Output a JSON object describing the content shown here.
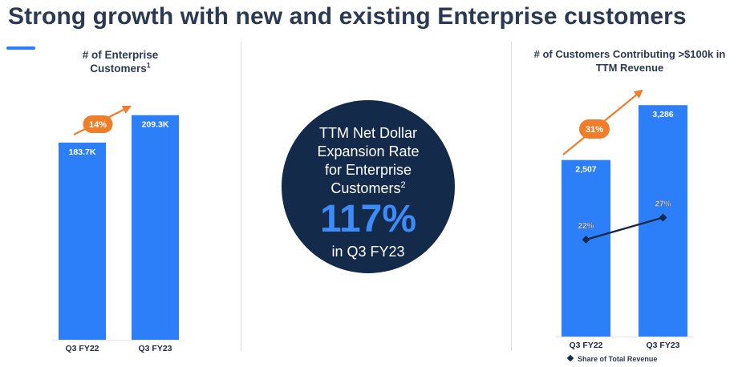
{
  "page_title": "Strong growth with new and existing Enterprise customers",
  "circle": {
    "label_lines": [
      "TTM Net Dollar",
      "Expansion Rate",
      "for Enterprise",
      "Customers"
    ],
    "label_sup": "2",
    "value": "117%",
    "sub": "in Q3 FY23"
  },
  "colors": {
    "bar": "#2d7ff9",
    "growth_arrow": "#f07d2a",
    "line": "#132a4a",
    "circle": "#132a4a"
  },
  "chart_data": [
    {
      "type": "bar",
      "title": "# of Enterprise Customers",
      "title_lines": [
        "# of Enterprise",
        "Customers"
      ],
      "title_sup": "1",
      "categories": [
        "Q3 FY22",
        "Q3 FY23"
      ],
      "values": [
        183.7,
        209.3
      ],
      "value_labels": [
        "183.7K",
        "209.3K"
      ],
      "unit": "K",
      "growth_label": "14%",
      "ylim": [
        0,
        230
      ]
    },
    {
      "type": "bar",
      "title": "# of Customers Contributing >$100k in TTM Revenue",
      "title_lines": [
        "# of Customers Contributing >$100k in",
        "TTM Revenue"
      ],
      "categories": [
        "Q3 FY22",
        "Q3 FY23"
      ],
      "values": [
        2507,
        3286
      ],
      "value_labels": [
        "2,507",
        "3,286"
      ],
      "growth_label": "31%",
      "ylim": [
        0,
        3550
      ],
      "line_series": {
        "name": "Share of Total Revenue",
        "values": [
          22,
          27
        ],
        "value_labels": [
          "22%",
          "27%"
        ],
        "ylim": [
          0,
          100
        ]
      },
      "legend": "bottom"
    }
  ]
}
